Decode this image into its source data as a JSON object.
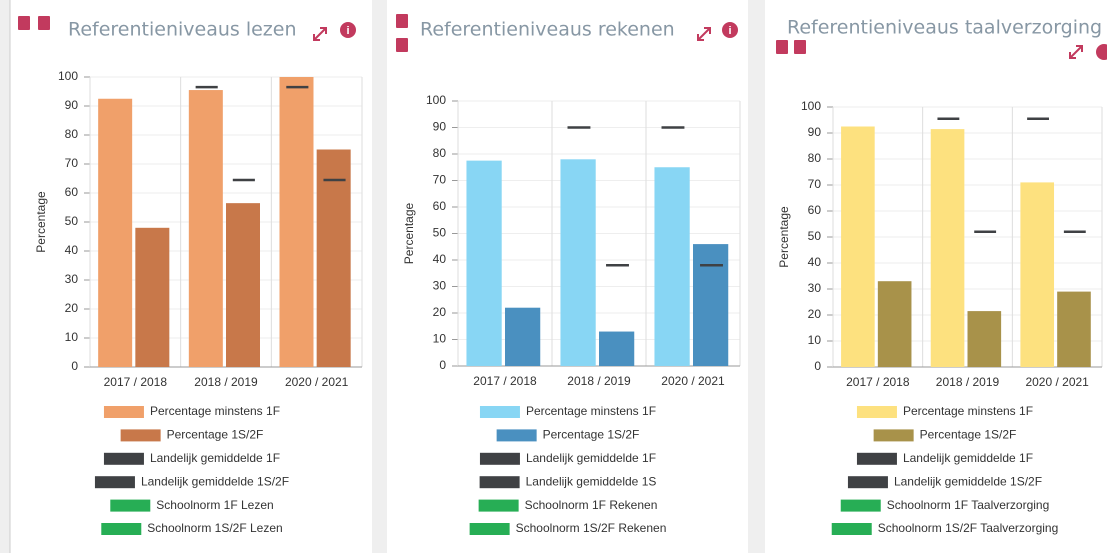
{
  "chart_data": [
    {
      "type": "bar",
      "title": "Referentieniveaus lezen",
      "y_label": "Percentage",
      "categories": [
        "2017 / 2018",
        "2018 / 2019",
        "2020 / 2021"
      ],
      "ylim": [
        0,
        100
      ],
      "yticks": [
        0,
        10,
        20,
        30,
        40,
        50,
        60,
        70,
        80,
        90,
        100
      ],
      "grid": true,
      "series": [
        {
          "name": "Percentage minstens 1F",
          "color": "#f0a06a",
          "marker": "bar",
          "values": [
            92.5,
            95.5,
            100
          ]
        },
        {
          "name": "Percentage 1S/2F",
          "color": "#c8784a",
          "marker": "bar",
          "values": [
            48,
            56.5,
            75
          ]
        },
        {
          "name": "Landelijk gemiddelde 1F",
          "color": "#3f4144",
          "marker": "dash",
          "values": [
            null,
            96.5,
            96.5
          ]
        },
        {
          "name": "Landelijk gemiddelde 1S/2F",
          "color": "#3f4144",
          "marker": "dash",
          "values": [
            null,
            64.5,
            64.5
          ]
        },
        {
          "name": "Schoolnorm 1F Lezen",
          "color": "#27ae55",
          "marker": "dash",
          "values": [
            null,
            null,
            null
          ]
        },
        {
          "name": "Schoolnorm 1S/2F Lezen",
          "color": "#27ae55",
          "marker": "dash",
          "values": [
            null,
            null,
            null
          ]
        }
      ]
    },
    {
      "type": "bar",
      "title": "Referentieniveaus rekenen",
      "y_label": "Percentage",
      "categories": [
        "2017 / 2018",
        "2018 / 2019",
        "2020 / 2021"
      ],
      "ylim": [
        0,
        100
      ],
      "yticks": [
        0,
        10,
        20,
        30,
        40,
        50,
        60,
        70,
        80,
        90,
        100
      ],
      "grid": true,
      "series": [
        {
          "name": "Percentage minstens 1F",
          "color": "#88d6f4",
          "marker": "bar",
          "values": [
            77.5,
            78,
            75
          ]
        },
        {
          "name": "Percentage 1S/2F",
          "color": "#4a90c0",
          "marker": "bar",
          "values": [
            22,
            13,
            46
          ]
        },
        {
          "name": "Landelijk gemiddelde 1F",
          "color": "#3f4144",
          "marker": "dash",
          "values": [
            null,
            90,
            90
          ]
        },
        {
          "name": "Landelijk gemiddelde 1S",
          "color": "#3f4144",
          "marker": "dash",
          "values": [
            null,
            38,
            38
          ]
        },
        {
          "name": "Schoolnorm 1F Rekenen",
          "color": "#27ae55",
          "marker": "dash",
          "values": [
            null,
            null,
            null
          ]
        },
        {
          "name": "Schoolnorm 1S/2F Rekenen",
          "color": "#27ae55",
          "marker": "dash",
          "values": [
            null,
            null,
            null
          ]
        }
      ]
    },
    {
      "type": "bar",
      "title": "Referentieniveaus taalverzorging",
      "y_label": "Percentage",
      "categories": [
        "2017 / 2018",
        "2018 / 2019",
        "2020 / 2021"
      ],
      "ylim": [
        0,
        100
      ],
      "yticks": [
        0,
        10,
        20,
        30,
        40,
        50,
        60,
        70,
        80,
        90,
        100
      ],
      "grid": true,
      "series": [
        {
          "name": "Percentage minstens 1F",
          "color": "#fde17f",
          "marker": "bar",
          "values": [
            92.5,
            91.5,
            71
          ]
        },
        {
          "name": "Percentage 1S/2F",
          "color": "#a8924a",
          "marker": "bar",
          "values": [
            33,
            21.5,
            29
          ]
        },
        {
          "name": "Landelijk gemiddelde 1F",
          "color": "#3f4144",
          "marker": "dash",
          "values": [
            null,
            95.5,
            95.5
          ]
        },
        {
          "name": "Landelijk gemiddelde 1S/2F",
          "color": "#3f4144",
          "marker": "dash",
          "values": [
            null,
            52,
            52
          ]
        },
        {
          "name": "Schoolnorm 1F Taalverzorging",
          "color": "#27ae55",
          "marker": "dash",
          "values": [
            null,
            null,
            null
          ]
        },
        {
          "name": "Schoolnorm 1S/2F Taalverzorging",
          "color": "#27ae55",
          "marker": "dash",
          "values": [
            null,
            null,
            null
          ]
        }
      ]
    }
  ]
}
